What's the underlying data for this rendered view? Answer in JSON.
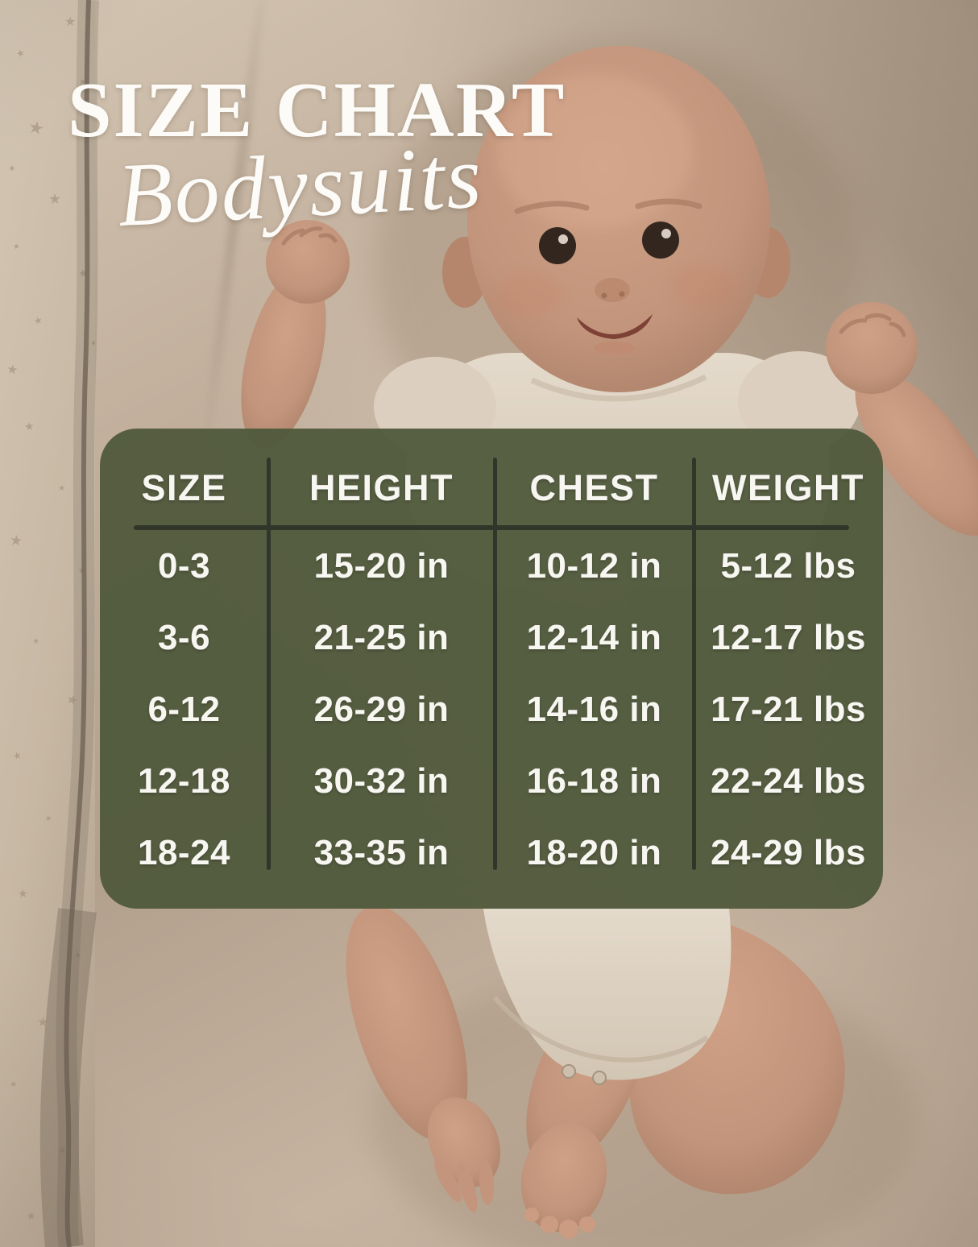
{
  "title": "SIZE CHART",
  "subtitle": "Bodysuits",
  "table": {
    "headers": [
      "SIZE",
      "HEIGHT",
      "CHEST",
      "WEIGHT"
    ],
    "rows": [
      [
        "0-3",
        "15-20 in",
        "10-12 in",
        "5-12 lbs"
      ],
      [
        "3-6",
        "21-25 in",
        "12-14 in",
        "12-17 lbs"
      ],
      [
        "6-12",
        "26-29 in",
        "14-16 in",
        "17-21 lbs"
      ],
      [
        "12-18",
        "30-32 in",
        "16-18 in",
        "22-24 lbs"
      ],
      [
        "18-24",
        "33-35 in",
        "18-20 in",
        "24-29 lbs"
      ]
    ]
  },
  "chart_data": {
    "type": "table",
    "title": "SIZE CHART",
    "subtitle": "Bodysuits",
    "columns": [
      "SIZE",
      "HEIGHT",
      "CHEST",
      "WEIGHT"
    ],
    "rows": [
      [
        "0-3",
        "15-20 in",
        "10-12 in",
        "5-12 lbs"
      ],
      [
        "3-6",
        "21-25 in",
        "12-14 in",
        "12-17 lbs"
      ],
      [
        "6-12",
        "26-29 in",
        "14-16 in",
        "17-21 lbs"
      ],
      [
        "12-18",
        "30-32 in",
        "16-18 in",
        "22-24 lbs"
      ],
      [
        "18-24",
        "33-35 in",
        "18-20 in",
        "24-29 lbs"
      ]
    ]
  },
  "colors": {
    "panel_green": "#565E41",
    "divider_line": "#30362A",
    "table_text": "#F7F6F1",
    "title_text": "#FCFBF7"
  },
  "decor": {
    "star_glyph": "★"
  }
}
